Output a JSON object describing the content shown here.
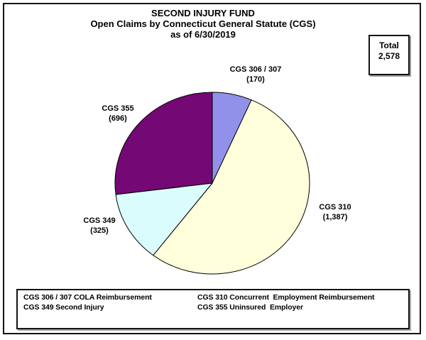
{
  "title": {
    "line1": "SECOND INJURY FUND",
    "line2": "Open Claims by Connecticut General Statute (CGS)",
    "line3": "as of 6/30/2019"
  },
  "total_box": {
    "label": "Total",
    "value": "2,578"
  },
  "chart_data": {
    "type": "pie",
    "title": "SECOND INJURY FUND — Open Claims by Connecticut General Statute (CGS) as of 6/30/2019",
    "total": 2578,
    "start_angle_deg": 0,
    "direction": "clockwise",
    "outline_color": "#000000",
    "slices": [
      {
        "label": "CGS 306 / 307",
        "value": 170,
        "display_value": "(170)",
        "color": "#9191EA"
      },
      {
        "label": "CGS 310",
        "value": 1387,
        "display_value": "(1,387)",
        "color": "#FFFFDB"
      },
      {
        "label": "CGS 349",
        "value": 325,
        "display_value": "(325)",
        "color": "#DBFCFC"
      },
      {
        "label": "CGS 355",
        "value": 696,
        "display_value": "(696)",
        "color": "#740874"
      }
    ]
  },
  "legend": {
    "items": [
      "CGS 306 / 307 COLA Reimbursement",
      "CGS 349 Second Injury",
      "CGS 310 Concurrent  Employment Reimbursement",
      "CGS 355 Uninsured  Employer"
    ]
  }
}
